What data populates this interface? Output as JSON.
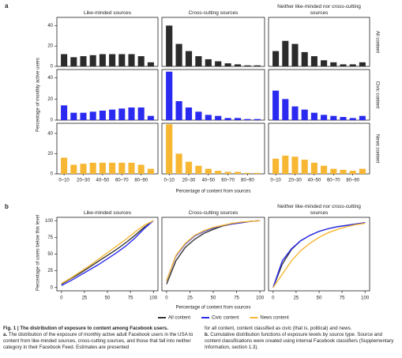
{
  "figure": {
    "panel_a_label": "a",
    "panel_b_label": "b",
    "row_labels": [
      "All content",
      "Civic content",
      "News content"
    ],
    "a_ylabel": "Percentage of monthly active users",
    "a_xlabel": "Percentage of content from sources",
    "b_ylabel": "Percentage of users below this level",
    "b_xlabel": "Percentage of content from sources"
  },
  "caption": {
    "title": "Fig. 1 | The distribution of exposure to content among Facebook users.",
    "left_label": "a.",
    "left_text": "The distribution of the exposure of monthly active adult Facebook users in the USA to content from like-minded sources, cross-cutting sources, and those that fall into neither category in their Facebook Feed. Estimates are presented",
    "right_text": "for all content, content classified as civic (that is, political) and news.",
    "right_label": "b.",
    "right_text2": "Cumulative distribution functions of exposure levels by source type. Source and content classifications were created using internal Facebook classifiers (Supplementary Information, section 1.3)."
  },
  "chart_data": [
    {
      "type": "bar",
      "title": "Like-minded sources",
      "values": [
        12,
        9,
        10,
        11,
        12,
        12,
        12,
        12,
        10,
        4
      ],
      "color": "#2b2b2b",
      "ylim": [
        0,
        48
      ],
      "yticks": [
        0,
        20,
        40
      ]
    },
    {
      "type": "bar",
      "title": "Cross-cutting sources",
      "values": [
        40,
        22,
        15,
        10,
        7,
        5,
        3,
        2,
        1,
        1
      ],
      "color": "#2b2b2b",
      "ylim": [
        0,
        48
      ]
    },
    {
      "type": "bar",
      "title": "Neither like-minded nor cross-cutting sources",
      "values": [
        15,
        25,
        22,
        14,
        10,
        6,
        4,
        2,
        2,
        4
      ],
      "color": "#2b2b2b",
      "ylim": [
        0,
        48
      ]
    },
    {
      "type": "bar",
      "values": [
        14,
        7,
        7,
        8,
        9,
        10,
        11,
        12,
        12,
        4
      ],
      "color": "#2a2af0",
      "ylim": [
        0,
        48
      ],
      "yticks": [
        0,
        20,
        40
      ]
    },
    {
      "type": "bar",
      "values": [
        46,
        18,
        12,
        8,
        5,
        4,
        2,
        2,
        1,
        1
      ],
      "color": "#2a2af0",
      "ylim": [
        0,
        48
      ]
    },
    {
      "type": "bar",
      "values": [
        28,
        20,
        13,
        10,
        7,
        5,
        4,
        3,
        2,
        4
      ],
      "color": "#2a2af0",
      "ylim": [
        0,
        48
      ]
    },
    {
      "type": "bar",
      "categories": [
        "0–10",
        null,
        "20–30",
        null,
        "40–50",
        null,
        "60–70",
        null,
        "80–90",
        null
      ],
      "values": [
        16,
        9,
        10,
        11,
        11,
        11,
        11,
        11,
        9,
        5
      ],
      "color": "#f7b733",
      "ylim": [
        0,
        50
      ],
      "yticks": [
        0,
        20,
        40
      ]
    },
    {
      "type": "bar",
      "categories": [
        "0–10",
        null,
        "20–30",
        null,
        "40–50",
        null,
        "60–70",
        null,
        "80–90",
        null
      ],
      "values": [
        49,
        20,
        12,
        8,
        5,
        3,
        2,
        2,
        1,
        1
      ],
      "color": "#f7b733",
      "ylim": [
        0,
        50
      ]
    },
    {
      "type": "bar",
      "categories": [
        "0–10",
        null,
        "20–30",
        null,
        "40–50",
        null,
        "60–70",
        null,
        "80–90",
        null
      ],
      "values": [
        15,
        18,
        17,
        14,
        11,
        8,
        5,
        4,
        3,
        5
      ],
      "color": "#f7b733",
      "ylim": [
        0,
        50
      ]
    },
    {
      "type": "line",
      "title": "Like-minded sources",
      "x": [
        0,
        10,
        20,
        30,
        40,
        50,
        60,
        70,
        80,
        90,
        100
      ],
      "xlim": [
        -5,
        105
      ],
      "ylim": [
        -5,
        105
      ],
      "xticks": [
        0,
        25,
        50,
        75,
        100
      ],
      "yticks": [
        0,
        25,
        50,
        75,
        100
      ],
      "series": [
        {
          "name": "All content",
          "color": "#333333",
          "values": [
            5,
            13,
            21,
            30,
            39,
            48,
            57,
            67,
            78,
            90,
            100
          ]
        },
        {
          "name": "Civic content",
          "color": "#2a2af0",
          "values": [
            3,
            10,
            18,
            26,
            34,
            43,
            52,
            62,
            74,
            88,
            100
          ]
        },
        {
          "name": "News content",
          "color": "#f7b733",
          "values": [
            6,
            14,
            23,
            32,
            42,
            52,
            62,
            72,
            83,
            93,
            100
          ]
        }
      ]
    },
    {
      "type": "line",
      "title": "Cross-cutting sources",
      "x": [
        0,
        10,
        20,
        30,
        40,
        50,
        60,
        70,
        80,
        90,
        100
      ],
      "xlim": [
        -5,
        105
      ],
      "ylim": [
        -5,
        105
      ],
      "xticks": [
        0,
        25,
        50,
        75,
        100
      ],
      "series": [
        {
          "color": "#333333",
          "values": [
            5,
            40,
            60,
            72,
            81,
            87,
            92,
            95,
            97,
            99,
            100
          ]
        },
        {
          "color": "#2a2af0",
          "values": [
            10,
            47,
            65,
            77,
            84,
            89,
            93,
            95,
            97,
            99,
            100
          ]
        },
        {
          "color": "#f7b733",
          "values": [
            10,
            48,
            66,
            78,
            85,
            90,
            93,
            96,
            98,
            99,
            100
          ]
        }
      ]
    },
    {
      "type": "line",
      "title": "Neither like-minded nor cross-cutting sources",
      "x": [
        0,
        10,
        20,
        30,
        40,
        50,
        60,
        70,
        80,
        90,
        100
      ],
      "xlim": [
        -5,
        105
      ],
      "ylim": [
        -5,
        105
      ],
      "xticks": [
        0,
        25,
        50,
        75,
        100
      ],
      "series": [
        {
          "color": "#333333",
          "values": [
            0,
            35,
            57,
            70,
            78,
            84,
            88,
            91,
            93,
            95,
            97
          ]
        },
        {
          "color": "#2a2af0",
          "values": [
            0,
            40,
            58,
            70,
            78,
            84,
            88,
            91,
            93,
            95,
            97
          ]
        },
        {
          "color": "#f7b733",
          "values": [
            0,
            20,
            40,
            55,
            66,
            75,
            82,
            87,
            91,
            94,
            96
          ]
        }
      ]
    }
  ]
}
